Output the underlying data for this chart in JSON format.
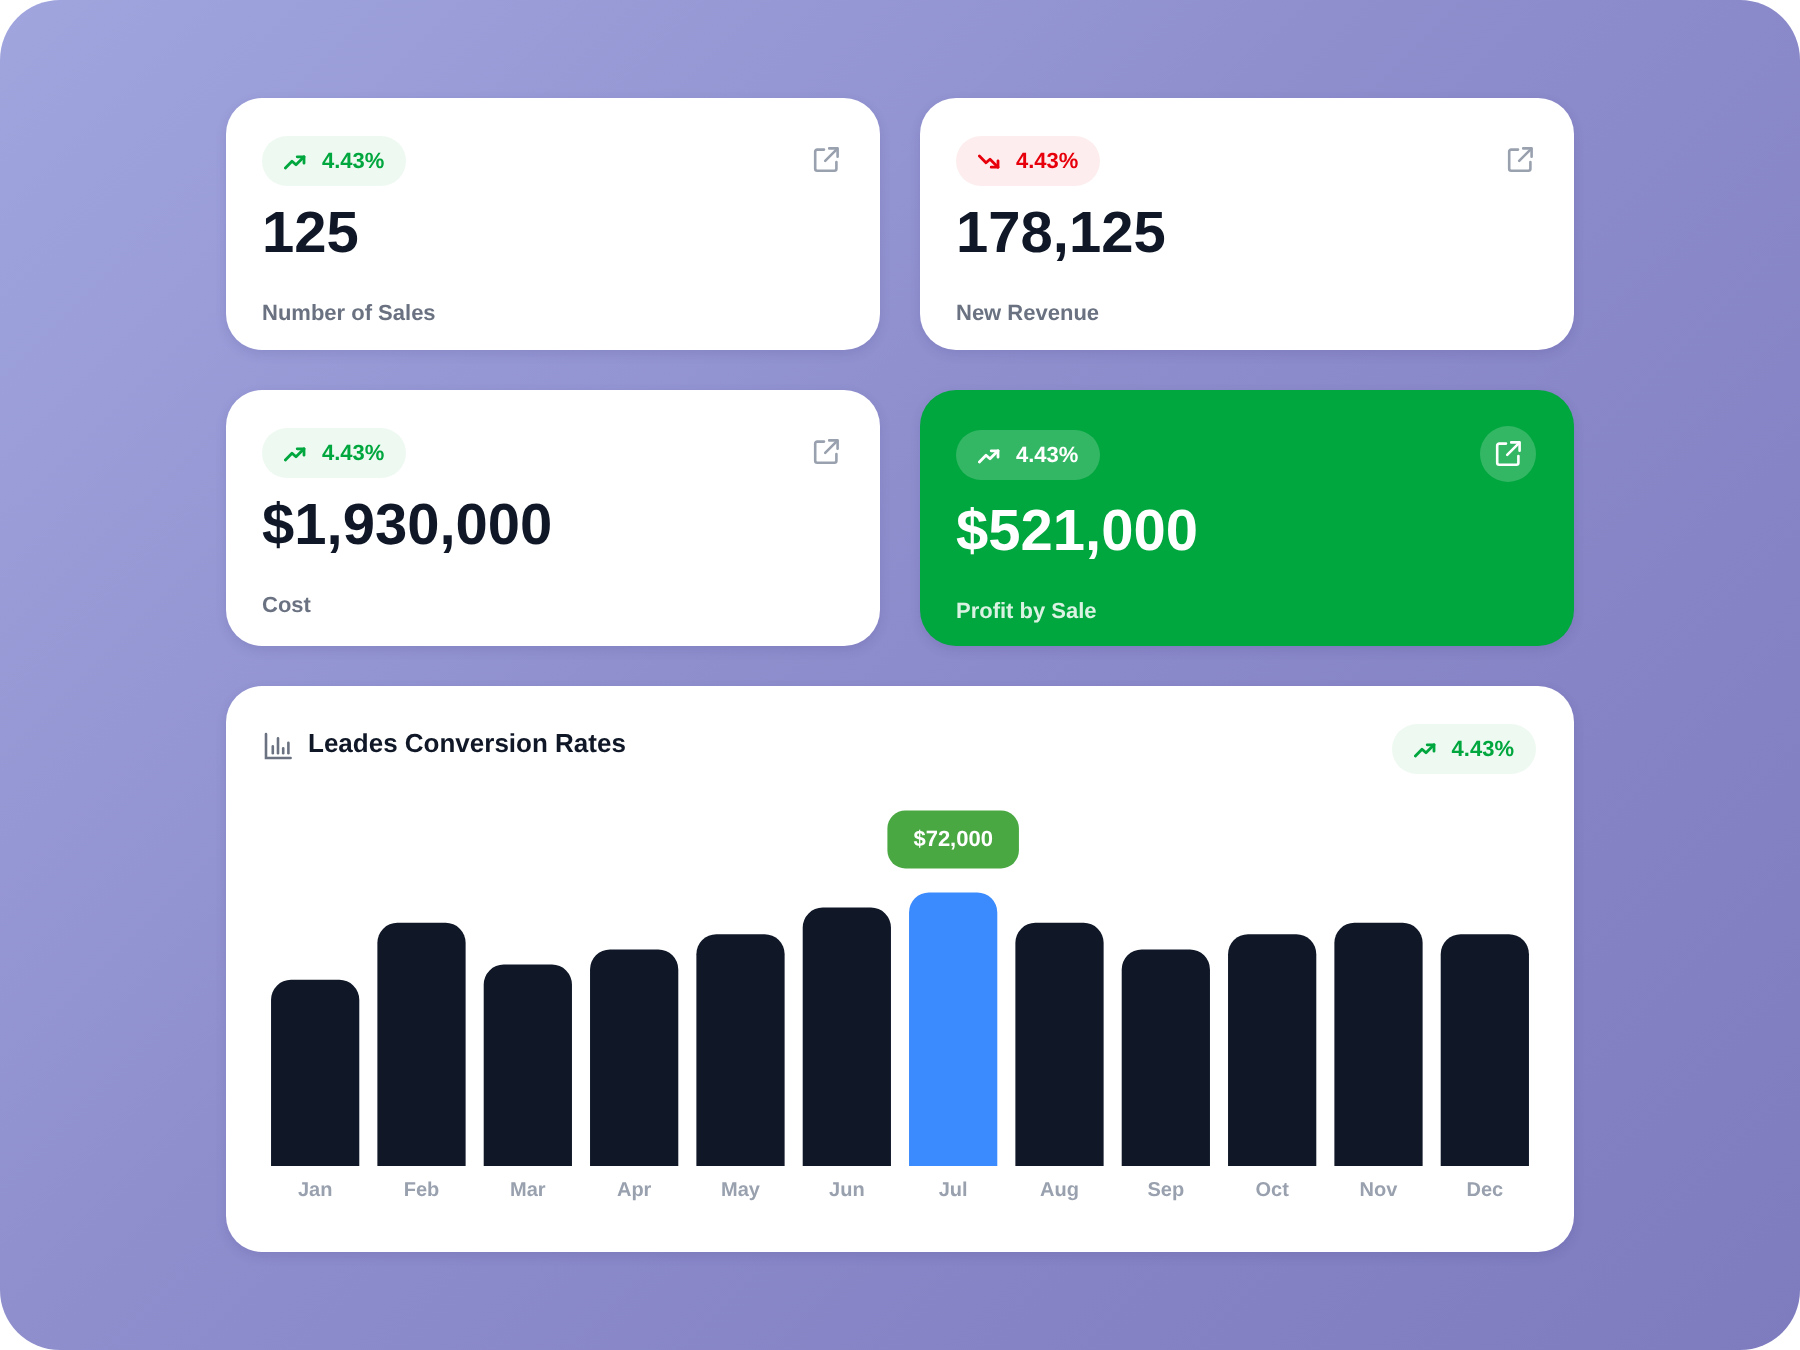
{
  "chart_data": [
    {
      "type": "other",
      "title": "Number of Sales",
      "annotations": [
        "4.43%",
        "125"
      ],
      "color": "#00a63e"
    },
    {
      "type": "other",
      "title": "New Revenue",
      "annotations": [
        "4.43%",
        "178,125"
      ],
      "color": "#e7000b"
    },
    {
      "type": "other",
      "title": "Cost",
      "annotations": [
        "4.43%",
        "$1,930,000"
      ],
      "color": "#00a63e"
    },
    {
      "type": "other",
      "title": "Profit by Sale",
      "annotations": [
        "4.43%",
        "$521,000"
      ],
      "color": "#ffffff",
      "colors": [
        "#00a63e"
      ]
    },
    {
      "type": "bar",
      "title": "Leades Conversion Rates",
      "annotations": [
        "4.43%"
      ],
      "categories": [
        "Jan",
        "Feb",
        "Mar",
        "Apr",
        "May",
        "Jun",
        "Jul",
        "Aug",
        "Sep",
        "Oct",
        "Nov",
        "Dec"
      ],
      "values": [
        49000,
        64000,
        53000,
        57000,
        61000,
        68000,
        72000,
        64000,
        57000,
        61000,
        64000,
        61000
      ],
      "colors": [
        "#101828",
        "#101828",
        "#101828",
        "#101828",
        "#101828",
        "#101828",
        "#3b8bff",
        "#101828",
        "#101828",
        "#101828",
        "#101828",
        "#101828"
      ],
      "value_labels": [
        null,
        null,
        null,
        null,
        null,
        null,
        "$72,000",
        null,
        null,
        null,
        null,
        null
      ],
      "tick_labels": "x"
    }
  ]
}
